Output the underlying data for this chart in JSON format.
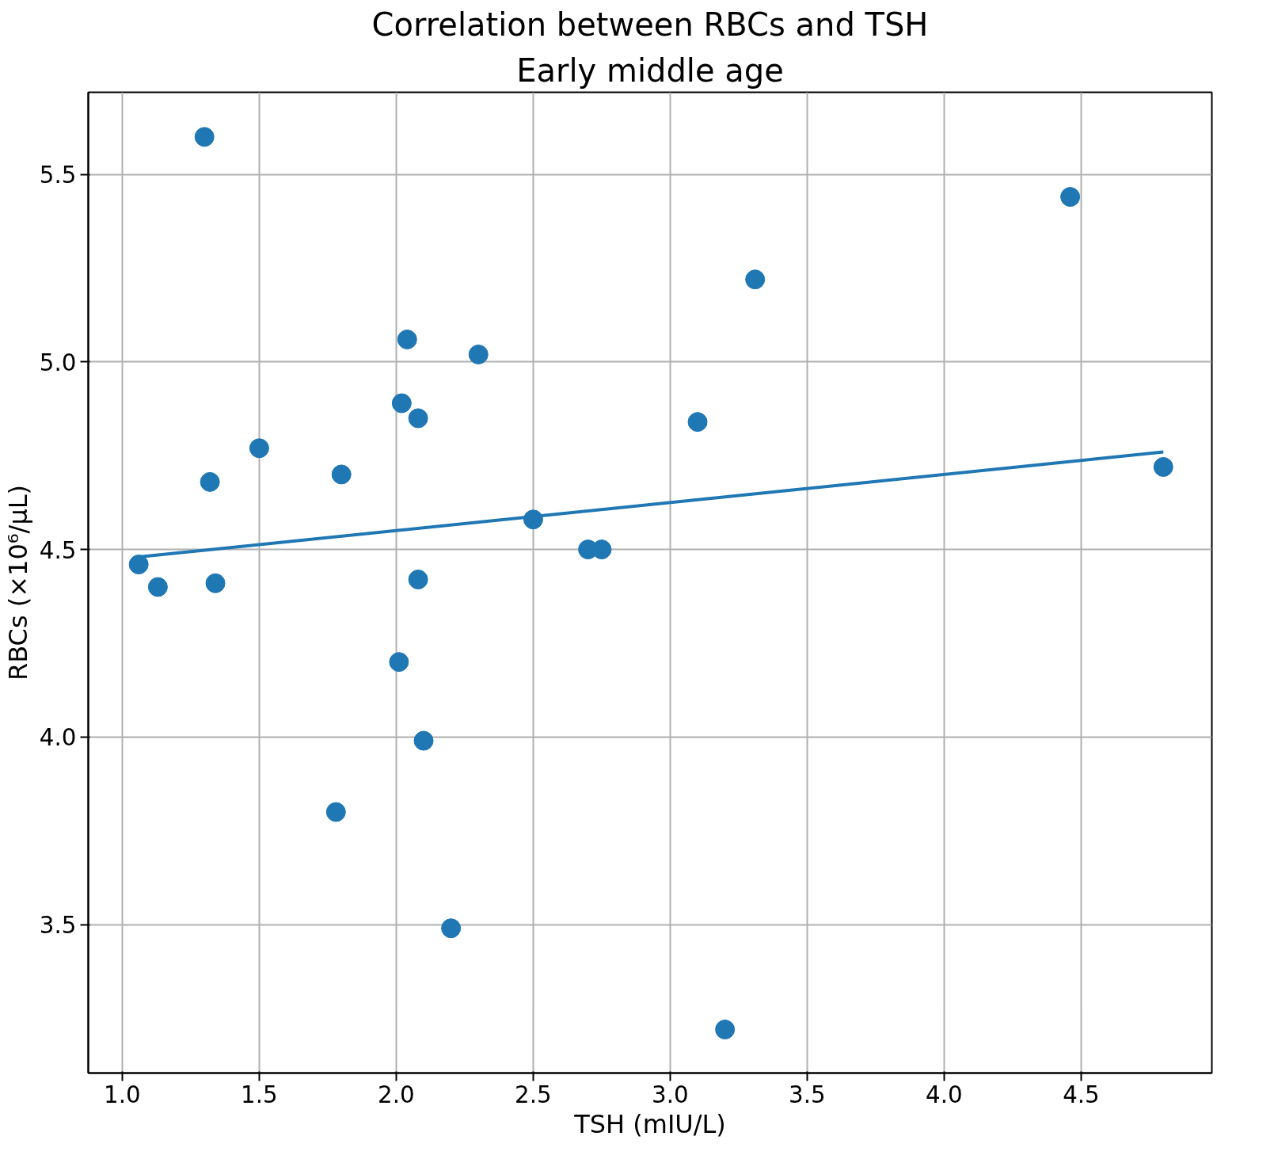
{
  "chart_data": {
    "type": "scatter",
    "title": "Correlation between RBCs and TSH",
    "subtitle": "Early middle age",
    "xlabel": "TSH (mIU/L)",
    "ylabel": "RBCs (×10⁶/µL)",
    "xlim": [
      0.876,
      4.977
    ],
    "ylim": [
      3.104,
      5.719
    ],
    "xticks": [
      {
        "value": 1.0,
        "label": "1.0"
      },
      {
        "value": 1.5,
        "label": "1.5"
      },
      {
        "value": 2.0,
        "label": "2.0"
      },
      {
        "value": 2.5,
        "label": "2.5"
      },
      {
        "value": 3.0,
        "label": "3.0"
      },
      {
        "value": 3.5,
        "label": "3.5"
      },
      {
        "value": 4.0,
        "label": "4.0"
      },
      {
        "value": 4.5,
        "label": "4.5"
      }
    ],
    "yticks": [
      {
        "value": 3.5,
        "label": "3.5"
      },
      {
        "value": 4.0,
        "label": "4.0"
      },
      {
        "value": 4.5,
        "label": "4.5"
      },
      {
        "value": 5.0,
        "label": "5.0"
      },
      {
        "value": 5.5,
        "label": "5.5"
      }
    ],
    "grid": true,
    "series": [
      {
        "marker": "circle",
        "color": "#1f77b4",
        "x": [
          1.3,
          4.46,
          3.31,
          2.04,
          2.3,
          2.02,
          2.08,
          3.1,
          1.5,
          1.32,
          1.8,
          2.5,
          2.7,
          2.75,
          4.8,
          1.06,
          1.13,
          1.34,
          2.08,
          2.01,
          2.1,
          1.78,
          2.2,
          3.2
        ],
        "values": [
          5.6,
          5.44,
          5.22,
          5.06,
          5.02,
          4.89,
          4.85,
          4.84,
          4.77,
          4.68,
          4.7,
          4.58,
          4.5,
          4.5,
          4.72,
          4.46,
          4.4,
          4.41,
          4.42,
          4.2,
          3.99,
          3.8,
          3.49,
          3.22
        ]
      },
      {
        "type": "line",
        "color": "#1f77b4",
        "x": [
          1.06,
          4.8
        ],
        "values": [
          4.48,
          4.76
        ]
      }
    ]
  }
}
